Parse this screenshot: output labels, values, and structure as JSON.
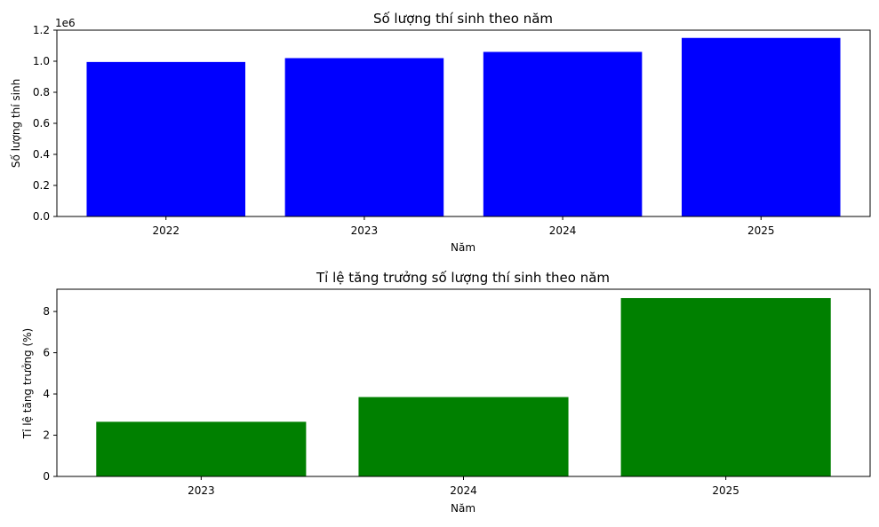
{
  "chart_data": [
    {
      "type": "bar",
      "title": "Số lượng thí sinh theo năm",
      "xlabel": "Năm",
      "ylabel": "Số lượng thí sinh",
      "offset_label": "1e6",
      "categories": [
        "2022",
        "2023",
        "2024",
        "2025"
      ],
      "values": [
        995000,
        1020000,
        1060000,
        1150000
      ],
      "ylim": [
        0,
        1200000
      ],
      "yticks": [
        0,
        200000,
        400000,
        600000,
        800000,
        1000000,
        1200000
      ],
      "ytick_labels": [
        "0.0",
        "0.2",
        "0.4",
        "0.6",
        "0.8",
        "1.0",
        "1.2"
      ],
      "color": "#0000ff",
      "grid": false
    },
    {
      "type": "bar",
      "title": "Tỉ lệ tăng trưởng số lượng thí sinh theo năm",
      "xlabel": "Năm",
      "ylabel": "Tỉ lệ tăng trưởng (%)",
      "categories": [
        "2023",
        "2024",
        "2025"
      ],
      "values": [
        2.65,
        3.85,
        8.65
      ],
      "ylim": [
        0,
        9.08
      ],
      "yticks": [
        0,
        2,
        4,
        6,
        8
      ],
      "ytick_labels": [
        "0",
        "2",
        "4",
        "6",
        "8"
      ],
      "color": "#008000",
      "grid": false
    }
  ]
}
